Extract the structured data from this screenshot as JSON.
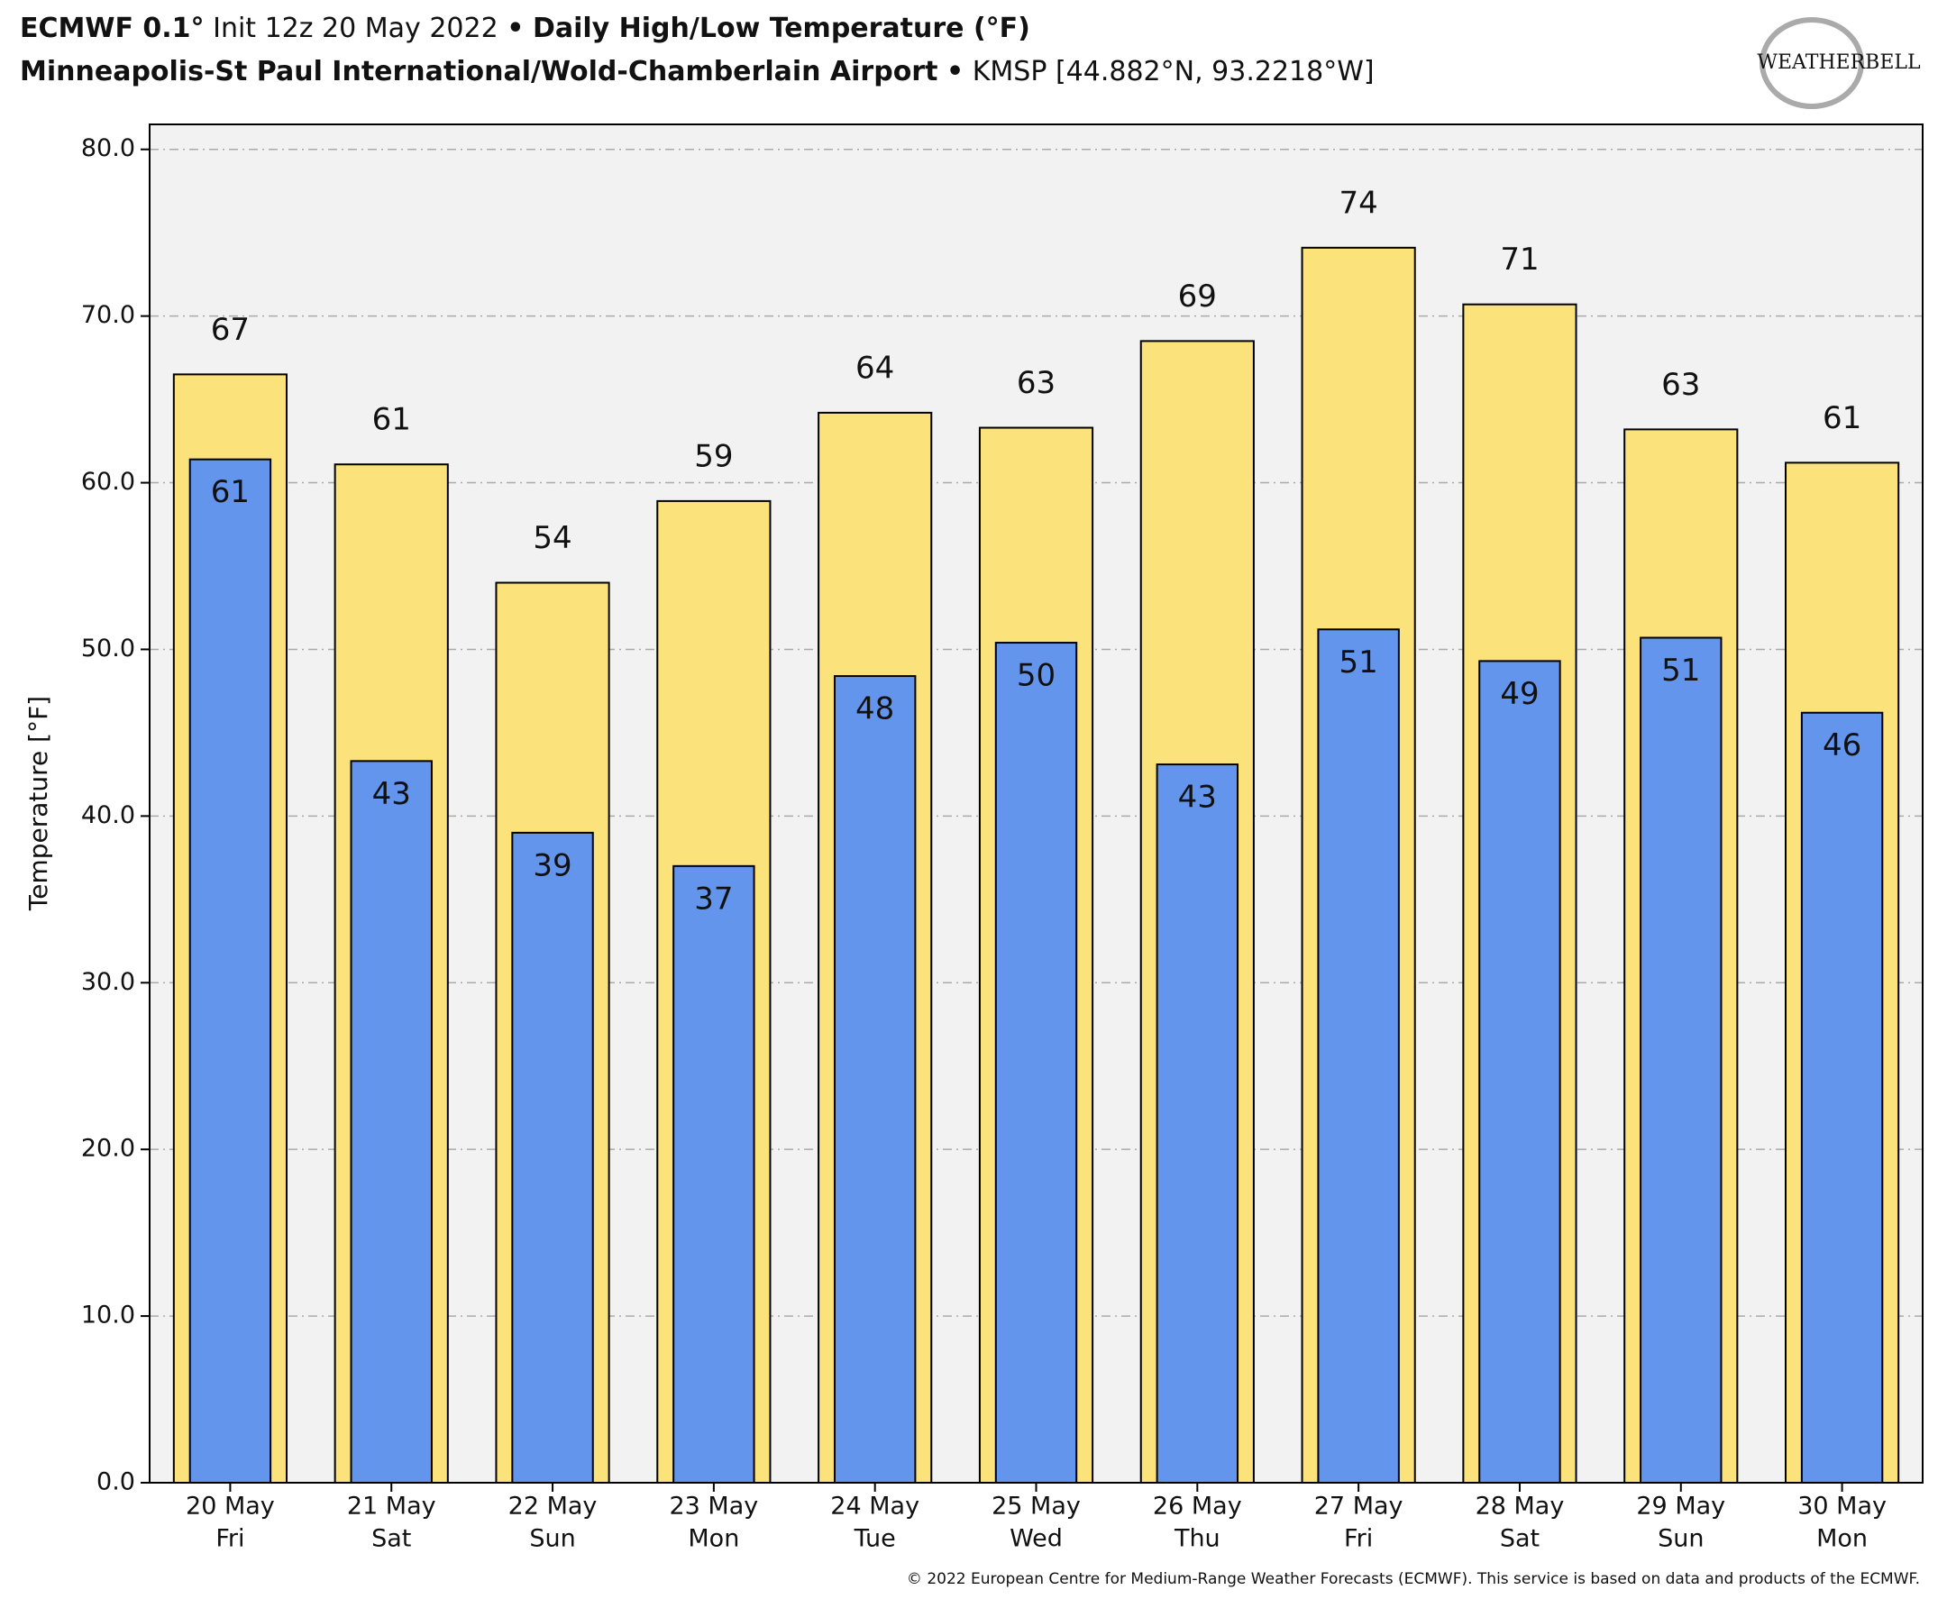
{
  "header": {
    "title_bold": "ECMWF 0.1°",
    "title_init": "Init 12z 20 May 2022",
    "title_sep": "•",
    "title_main": "Daily High/Low Temperature (°F)",
    "station_bold": "Minneapolis-St Paul International/Wold-Chamberlain Airport",
    "station_sep": "•",
    "station_info": "KMSP [44.882°N, 93.2218°W]",
    "logo": "WEATHERBELL"
  },
  "chart_data": {
    "type": "bar",
    "y_label": "Temperature [°F]",
    "categories": [
      [
        "20 May",
        "Fri"
      ],
      [
        "21 May",
        "Sat"
      ],
      [
        "22 May",
        "Sun"
      ],
      [
        "23 May",
        "Mon"
      ],
      [
        "24 May",
        "Tue"
      ],
      [
        "25 May",
        "Wed"
      ],
      [
        "26 May",
        "Thu"
      ],
      [
        "27 May",
        "Fri"
      ],
      [
        "28 May",
        "Sat"
      ],
      [
        "29 May",
        "Sun"
      ],
      [
        "30 May",
        "Mon"
      ]
    ],
    "series": [
      {
        "name": "High",
        "color": "#fbe27a",
        "values": [
          66.5,
          61.1,
          54,
          58.9,
          64.2,
          63.3,
          68.5,
          74.1,
          70.7,
          63.2,
          61.2
        ],
        "value_labels": [
          "67",
          "61",
          "54",
          "59",
          "64",
          "63",
          "69",
          "74",
          "71",
          "63",
          "61"
        ]
      },
      {
        "name": "Low",
        "color": "#6495ed",
        "values": [
          61.4,
          43.3,
          39,
          37,
          48.4,
          50.4,
          43.1,
          51.2,
          49.3,
          50.7,
          46.2
        ],
        "value_labels": [
          "61",
          "43",
          "39",
          "37",
          "48",
          "50",
          "43",
          "51",
          "49",
          "51",
          "46"
        ]
      }
    ],
    "ylim": [
      0,
      81.5
    ],
    "yticks": [
      {
        "value": 0,
        "label": "0.0"
      },
      {
        "value": 10,
        "label": "10.0"
      },
      {
        "value": 20,
        "label": "20.0"
      },
      {
        "value": 30,
        "label": "30.0"
      },
      {
        "value": 40,
        "label": "40.0"
      },
      {
        "value": 50,
        "label": "50.0"
      },
      {
        "value": 60,
        "label": "60.0"
      },
      {
        "value": 70,
        "label": "70.0"
      },
      {
        "value": 80,
        "label": "80.0"
      }
    ],
    "grid": true,
    "footer": "© 2022 European Centre for Medium-Range Weather Forecasts (ECMWF). This service is based on data and products of the ECMWF."
  }
}
